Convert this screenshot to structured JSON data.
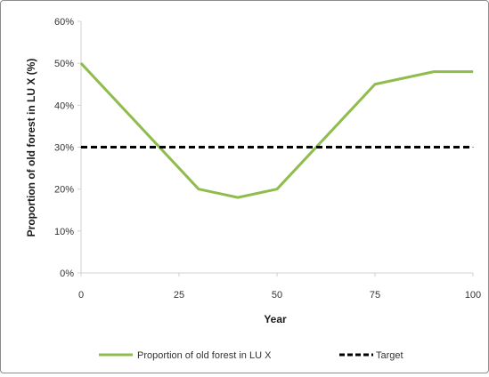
{
  "chart_data": {
    "type": "line",
    "title": "",
    "xlabel": "Year",
    "ylabel": "Proportion of old forest in LU X (%)",
    "xlim": [
      0,
      100
    ],
    "ylim": [
      0,
      60
    ],
    "x_ticks": [
      "0",
      "25",
      "50",
      "75",
      "100"
    ],
    "y_ticks": [
      "0%",
      "10%",
      "20%",
      "30%",
      "40%",
      "50%",
      "60%"
    ],
    "grid": false,
    "legend_position": "bottom",
    "series": [
      {
        "name": "Proportion of old forest in LU X",
        "color": "#8fbc4c",
        "style": "solid",
        "x": [
          0,
          30,
          40,
          50,
          75,
          90,
          100
        ],
        "y": [
          50,
          20,
          18,
          20,
          45,
          48,
          48
        ]
      },
      {
        "name": "Target",
        "color": "#000000",
        "style": "dashed",
        "x": [
          0,
          100
        ],
        "y": [
          30,
          30
        ]
      }
    ]
  }
}
